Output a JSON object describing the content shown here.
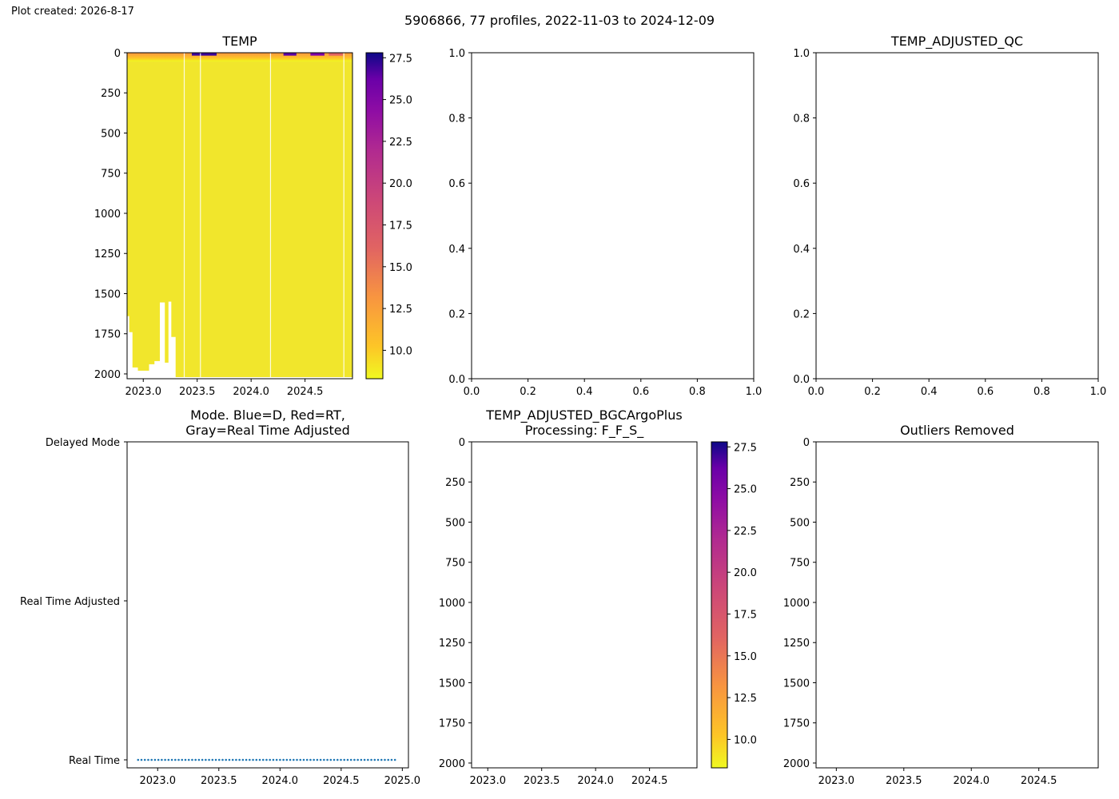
{
  "header": {
    "plot_created": "Plot created: 2026-8-17",
    "suptitle": "5906866, 77 profiles, 2022-11-03 to 2024-12-09"
  },
  "chart_data": [
    {
      "id": "temp",
      "type": "heatmap",
      "title": "TEMP",
      "xlim": [
        2022.85,
        2024.94
      ],
      "ylim": [
        2030,
        0
      ],
      "xticks": [
        "2023.0",
        "2023.5",
        "2024.0",
        "2024.5"
      ],
      "yticks": [
        "0",
        "250",
        "500",
        "750",
        "1000",
        "1250",
        "1500",
        "1750",
        "2000"
      ],
      "colormap": "plasma_r",
      "profile_max_depth": [
        {
          "from": 2022.84,
          "to": 2022.87,
          "depth": 1640
        },
        {
          "from": 2022.87,
          "to": 2022.9,
          "depth": 1740
        },
        {
          "from": 2022.9,
          "to": 2022.95,
          "depth": 1960
        },
        {
          "from": 2022.95,
          "to": 2023.05,
          "depth": 1980
        },
        {
          "from": 2023.05,
          "to": 2023.1,
          "depth": 1940
        },
        {
          "from": 2023.1,
          "to": 2023.15,
          "depth": 1920
        },
        {
          "from": 2023.15,
          "to": 2023.2,
          "depth": 1555
        },
        {
          "from": 2023.2,
          "to": 2023.23,
          "depth": 1930
        },
        {
          "from": 2023.23,
          "to": 2023.26,
          "depth": 1550
        },
        {
          "from": 2023.26,
          "to": 2023.3,
          "depth": 1770
        },
        {
          "from": 2023.3,
          "to": 2024.94,
          "depth": 2020
        }
      ],
      "gaps": [
        2023.38,
        2023.53,
        2024.18,
        2024.86
      ],
      "surface_warm_range": [
        18,
        28
      ],
      "colorbar": {
        "min": 8.3,
        "max": 27.8,
        "ticks": [
          "10.0",
          "12.5",
          "15.0",
          "17.5",
          "20.0",
          "22.5",
          "25.0",
          "27.5"
        ]
      }
    },
    {
      "id": "empty-top-middle",
      "type": "scatter",
      "title": "",
      "xlim": [
        0,
        1
      ],
      "ylim": [
        0,
        1
      ],
      "xticks": [
        "0.0",
        "0.2",
        "0.4",
        "0.6",
        "0.8",
        "1.0"
      ],
      "yticks": [
        "0.0",
        "0.2",
        "0.4",
        "0.6",
        "0.8",
        "1.0"
      ]
    },
    {
      "id": "temp-adjusted-qc",
      "type": "scatter",
      "title": "TEMP_ADJUSTED_QC",
      "xlim": [
        0,
        1
      ],
      "ylim": [
        0,
        1
      ],
      "xticks": [
        "0.0",
        "0.2",
        "0.4",
        "0.6",
        "0.8",
        "1.0"
      ],
      "yticks": [
        "0.0",
        "0.2",
        "0.4",
        "0.6",
        "0.8",
        "1.0"
      ]
    },
    {
      "id": "mode",
      "type": "scatter",
      "title_lines": [
        "Mode. Blue=D, Red=RT,",
        "Gray=Real Time Adjusted"
      ],
      "xlim": [
        2022.75,
        2025.05
      ],
      "ylim": [
        0,
        2
      ],
      "xticks": [
        "2023.0",
        "2023.5",
        "2024.0",
        "2024.5",
        "2025.0"
      ],
      "ycategories": [
        "Real Time",
        "Real Time Adjusted",
        "Delayed Mode"
      ],
      "points": {
        "x_start": 2022.84,
        "x_end": 2024.94,
        "count": 77,
        "y": 0
      },
      "point_color": "#1f77b4"
    },
    {
      "id": "temp-adjusted-bgc",
      "type": "heatmap",
      "title_lines": [
        "TEMP_ADJUSTED_BGCArgoPlus",
        "Processing: F_F_S_"
      ],
      "xlim": [
        2022.85,
        2024.94
      ],
      "ylim": [
        2030,
        0
      ],
      "xticks": [
        "2023.0",
        "2023.5",
        "2024.0",
        "2024.5"
      ],
      "yticks": [
        "0",
        "250",
        "500",
        "750",
        "1000",
        "1250",
        "1500",
        "1750",
        "2000"
      ],
      "colormap": "plasma_r",
      "colorbar": {
        "min": 8.3,
        "max": 27.8,
        "ticks": [
          "10.0",
          "12.5",
          "15.0",
          "17.5",
          "20.0",
          "22.5",
          "25.0",
          "27.5"
        ]
      }
    },
    {
      "id": "outliers-removed",
      "type": "scatter",
      "title": "Outliers Removed",
      "xlim": [
        2022.85,
        2024.94
      ],
      "ylim": [
        2030,
        0
      ],
      "xticks": [
        "2023.0",
        "2023.5",
        "2024.0",
        "2024.5"
      ],
      "yticks": [
        "0",
        "250",
        "500",
        "750",
        "1000",
        "1250",
        "1500",
        "1750",
        "2000"
      ]
    }
  ]
}
